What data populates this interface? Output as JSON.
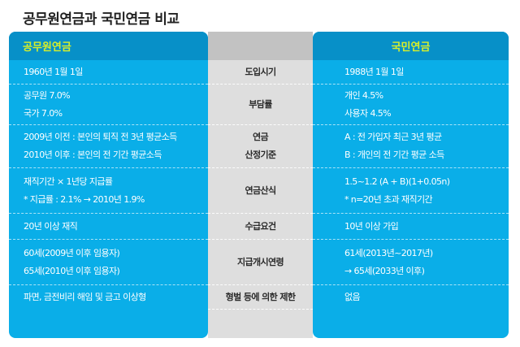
{
  "title": "공무원연금과 국민연금 비교",
  "headers": {
    "left": "공무원연금",
    "middle": "",
    "right": "국민연금"
  },
  "colors": {
    "panel_blue": "#0aaee8",
    "header_blue": "#0790c8",
    "header_text": "#d8ef2a",
    "middle_gray": "#dedede",
    "middle_header_gray": "#c2c2c2"
  },
  "rows": [
    {
      "category": [
        "도입시기"
      ],
      "civil_servant": [
        "1960년 1월 1일"
      ],
      "national": [
        "1988년 1월 1일"
      ]
    },
    {
      "category": [
        "부담률"
      ],
      "civil_servant": [
        "공무원 7.0%",
        "국가 7.0%"
      ],
      "national": [
        "개인 4.5%",
        "사용자 4.5%"
      ]
    },
    {
      "category": [
        "연금",
        "산정기준"
      ],
      "civil_servant": [
        "2009년 이전 : 본인의 퇴직 전 3년 평균소득",
        "2010년 이후 : 본인의 전 기간 평균소득"
      ],
      "national": [
        "A : 전 가입자 최근 3년 평균",
        "B : 개인의 전 기간 평균 소득"
      ]
    },
    {
      "category": [
        "연금산식"
      ],
      "civil_servant": [
        "재직기간 × 1년당 지급률",
        "* 지급률 : 2.1% → 2010년 1.9%"
      ],
      "national": [
        "1.5~1.2 (A + B)(1+0.05n)",
        "* n=20년 초과 재직기간"
      ]
    },
    {
      "category": [
        "수급요건"
      ],
      "civil_servant": [
        "20년 이상 재직"
      ],
      "national": [
        "10년 이상 가입"
      ]
    },
    {
      "category": [
        "지급개시연령"
      ],
      "civil_servant": [
        "60세(2009년 이후 임용자)",
        "65세(2010년 이후 임용자)"
      ],
      "national": [
        "61세(2013년~2017년)",
        "→ 65세(2033년 이후)"
      ]
    },
    {
      "category": [
        "형벌 등에 의한 제한"
      ],
      "civil_servant": [
        "파면, 금전비리 해임 및 금고 이상형"
      ],
      "national": [
        "없음"
      ]
    }
  ]
}
